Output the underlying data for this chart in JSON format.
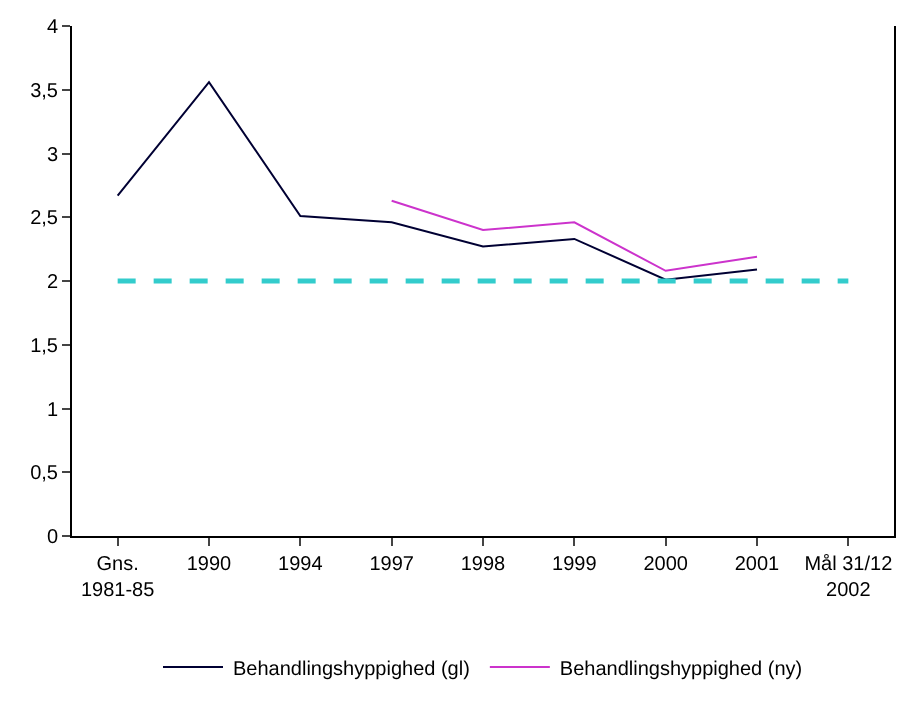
{
  "chart_data": {
    "type": "line",
    "categories": [
      "Gns.\n1981-85",
      "1990",
      "1994",
      "1997",
      "1998",
      "1999",
      "2000",
      "2001",
      "Mål 31/12\n2002"
    ],
    "series": [
      {
        "name": "Behandlingshyppighed (gl)",
        "color": "#000033",
        "values": [
          2.67,
          3.56,
          2.51,
          2.46,
          2.27,
          2.33,
          2.01,
          2.09,
          null
        ]
      },
      {
        "name": "Behandlingshyppighed (ny)",
        "color": "#cc33cc",
        "values": [
          null,
          null,
          null,
          2.63,
          2.4,
          2.46,
          2.08,
          2.19,
          null
        ]
      },
      {
        "color": "#33cccc",
        "line_style": "dashed",
        "values": [
          2,
          2,
          2,
          2,
          2,
          2,
          2,
          2,
          2
        ]
      }
    ],
    "ylim": [
      0,
      4
    ],
    "yticks": [
      0,
      {
        "value": 0.5,
        "label": "0,5"
      },
      1,
      {
        "value": 1.5,
        "label": "1,5"
      },
      2,
      {
        "value": 2.5,
        "label": "2,5"
      },
      3,
      {
        "value": 3.5,
        "label": "3,5"
      },
      4
    ],
    "legend": "bottom",
    "marker": "none"
  }
}
